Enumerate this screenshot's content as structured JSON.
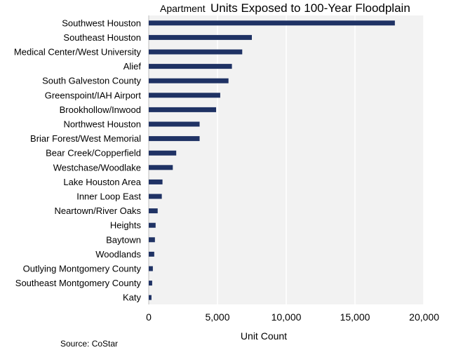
{
  "chart_data": {
    "type": "bar",
    "orientation": "horizontal",
    "title_prefix": "Apartment",
    "title_main": "Units Exposed to 100-Year Floodplain",
    "xlabel": "Unit Count",
    "ylabel": "",
    "xlim": [
      0,
      20000
    ],
    "xticks": [
      0,
      5000,
      10000,
      15000,
      20000
    ],
    "xtick_labels": [
      "0",
      "5,000",
      "10,000",
      "15,000",
      "20,000"
    ],
    "grid": true,
    "legend": "none",
    "bar_color": "#1f3264",
    "categories": [
      "Southwest Houston",
      "Southeast Houston",
      "Medical Center/West University",
      "Alief",
      "South Galveston County",
      "Greenspoint/IAH Airport",
      "Brookhollow/Inwood",
      "Northwest Houston",
      "Briar Forest/West Memorial",
      "Bear Creek/Copperfield",
      "Westchase/Woodlake",
      "Lake Houston Area",
      "Inner Loop East",
      "Neartown/River Oaks",
      "Heights",
      "Baytown",
      "Woodlands",
      "Outlying Montgomery County",
      "Southeast Montgomery County",
      "Katy"
    ],
    "values": [
      17900,
      7500,
      6800,
      6050,
      5800,
      5200,
      4900,
      3700,
      3700,
      2000,
      1750,
      1000,
      950,
      650,
      500,
      450,
      400,
      300,
      250,
      200
    ],
    "source": "Source: CoStar"
  }
}
